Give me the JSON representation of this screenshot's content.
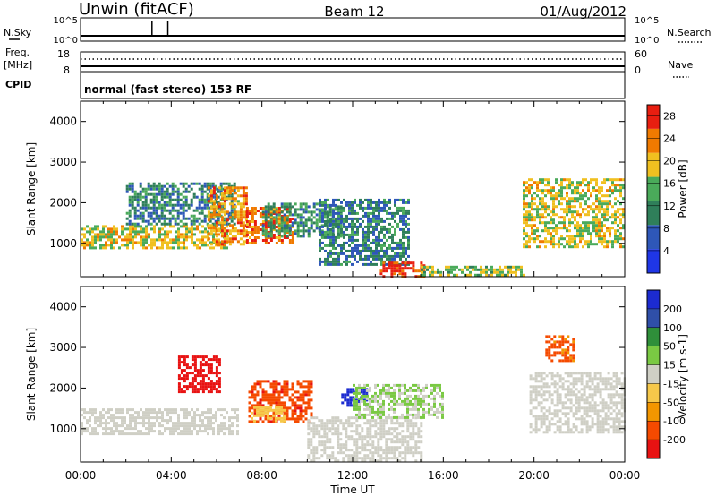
{
  "header": {
    "station": "Unwin (fitACF)",
    "beam": "Beam 12",
    "date": "01/Aug/2012"
  },
  "labels": {
    "nsky": "N.Sky",
    "nsearch": "N.Search",
    "freq_line1": "Freq.",
    "freq_line2": "[MHz]",
    "nave": "Nave",
    "cpid": "CPID",
    "cpid_text": "normal (fast stereo) 153 RF"
  },
  "noise_panel": {
    "left_ticks": [
      "10^5",
      "10^0"
    ],
    "right_ticks": [
      "10^5",
      "10^0"
    ],
    "spikes": [
      {
        "t": 3.15,
        "level": 1.0
      },
      {
        "t": 3.85,
        "level": 1.0
      }
    ]
  },
  "freq_panel": {
    "left_ticks": [
      "18",
      "8"
    ],
    "right_ticks": [
      "60",
      "0"
    ]
  },
  "colors": {
    "power_scale": [
      "#1f36e6",
      "#2e57b8",
      "#2f7f5a",
      "#4aaa5a",
      "#f0c020",
      "#f07a00",
      "#e81e10"
    ],
    "velocity_scale": [
      "#e81212",
      "#f54a00",
      "#f39600",
      "#f6c84a",
      "#cfcfc5",
      "#7ac943",
      "#2f8f3a",
      "#2f4fa8",
      "#1c2bd0"
    ]
  },
  "chart_data": [
    {
      "type": "heatmap",
      "title": "",
      "xlabel": "",
      "ylabel": "Slant Range [km]",
      "x_range_hours": [
        0,
        24
      ],
      "y_range_km": [
        180,
        4500
      ],
      "y_ticks": [
        "1000",
        "2000",
        "3000",
        "4000"
      ],
      "colorbar": {
        "label": "Power [dB]",
        "ticks": [
          "4",
          "8",
          "12",
          "16",
          "20",
          "24",
          "28"
        ],
        "range": [
          0,
          30
        ]
      },
      "echo_regions": [
        {
          "t_start": 0.0,
          "t_end": 6.5,
          "r_start": 900,
          "r_end": 1450,
          "power": 18
        },
        {
          "t_start": 2.0,
          "t_end": 6.8,
          "r_start": 1500,
          "r_end": 2500,
          "power": 10
        },
        {
          "t_start": 5.6,
          "t_end": 7.3,
          "r_start": 1000,
          "r_end": 2400,
          "power": 22
        },
        {
          "t_start": 7.3,
          "t_end": 9.4,
          "r_start": 1000,
          "r_end": 1900,
          "power": 25
        },
        {
          "t_start": 8.0,
          "t_end": 11.5,
          "r_start": 1200,
          "r_end": 2000,
          "power": 12
        },
        {
          "t_start": 10.5,
          "t_end": 14.5,
          "r_start": 500,
          "r_end": 2100,
          "power": 10
        },
        {
          "t_start": 13.2,
          "t_end": 15.2,
          "r_start": 200,
          "r_end": 550,
          "power": 27
        },
        {
          "t_start": 15.0,
          "t_end": 19.6,
          "r_start": 200,
          "r_end": 450,
          "power": 16
        },
        {
          "t_start": 19.5,
          "t_end": 24.0,
          "r_start": 900,
          "r_end": 2600,
          "power": 18
        }
      ]
    },
    {
      "type": "heatmap",
      "title": "",
      "xlabel": "Time UT",
      "ylabel": "Slant Range [km]",
      "x_range_hours": [
        0,
        24
      ],
      "y_range_km": [
        180,
        4500
      ],
      "x_ticks": [
        "00:00",
        "04:00",
        "08:00",
        "12:00",
        "16:00",
        "20:00",
        "00:00"
      ],
      "y_ticks": [
        "1000",
        "2000",
        "3000",
        "4000"
      ],
      "colorbar": {
        "label": "Velocity [m s-1]",
        "ticks": [
          "-200",
          "-100",
          "-50",
          "-15",
          "15",
          "50",
          "100",
          "200"
        ],
        "range": [
          -250,
          250
        ]
      },
      "echo_regions": [
        {
          "t_start": 0.0,
          "t_end": 6.9,
          "r_start": 900,
          "r_end": 1500,
          "velocity": 0
        },
        {
          "t_start": 4.3,
          "t_end": 6.1,
          "r_start": 1900,
          "r_end": 2800,
          "velocity": -220
        },
        {
          "t_start": 7.4,
          "t_end": 10.2,
          "r_start": 1200,
          "r_end": 2200,
          "velocity": -180
        },
        {
          "t_start": 7.5,
          "t_end": 9.0,
          "r_start": 1200,
          "r_end": 1550,
          "velocity": -60
        },
        {
          "t_start": 11.5,
          "t_end": 12.6,
          "r_start": 1600,
          "r_end": 2000,
          "velocity": 220
        },
        {
          "t_start": 10.0,
          "t_end": 15.0,
          "r_start": 200,
          "r_end": 1300,
          "velocity": 0
        },
        {
          "t_start": 12.0,
          "t_end": 16.0,
          "r_start": 1300,
          "r_end": 2100,
          "velocity": 30
        },
        {
          "t_start": 19.8,
          "t_end": 24.0,
          "r_start": 900,
          "r_end": 2400,
          "velocity": 0
        },
        {
          "t_start": 20.5,
          "t_end": 21.7,
          "r_start": 2700,
          "r_end": 3300,
          "velocity": -150
        }
      ]
    }
  ]
}
